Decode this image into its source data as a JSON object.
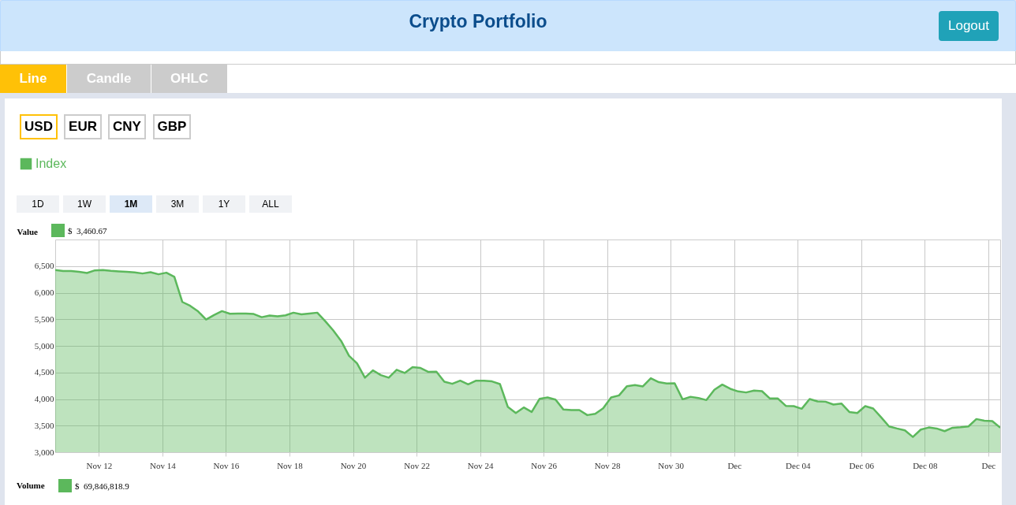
{
  "chart_data": {
    "type": "area",
    "title": "Crypto Portfolio",
    "ylabel": "Value",
    "legend": "top left",
    "grid": true,
    "xlim": [
      "--11-10T15:00",
      "--12-10T09:00"
    ],
    "xticks": [
      {
        "value": "--11-12",
        "label": "Nov 12"
      },
      {
        "value": "--11-14",
        "label": "Nov 14"
      },
      {
        "value": "--11-16",
        "label": "Nov 16"
      },
      {
        "value": "--11-18",
        "label": "Nov 18"
      },
      {
        "value": "--11-20",
        "label": "Nov 20"
      },
      {
        "value": "--11-22",
        "label": "Nov 22"
      },
      {
        "value": "--11-24",
        "label": "Nov 24"
      },
      {
        "value": "--11-26",
        "label": "Nov 26"
      },
      {
        "value": "--11-28",
        "label": "Nov 28"
      },
      {
        "value": "--11-30",
        "label": "Nov 30"
      },
      {
        "value": "--12-02",
        "label": "Dec"
      },
      {
        "value": "--12-04",
        "label": "Dec 04"
      },
      {
        "value": "--12-06",
        "label": "Dec 06"
      },
      {
        "value": "--12-08",
        "label": "Dec 08"
      },
      {
        "value": "--12-10",
        "label": "Dec"
      }
    ],
    "ylim": [
      3000,
      7000
    ],
    "yticks": [
      {
        "value": 3000,
        "label": "3,000"
      },
      {
        "value": 3500,
        "label": "3,500"
      },
      {
        "value": 4000,
        "label": "4,000"
      },
      {
        "value": 4500,
        "label": "4,500"
      },
      {
        "value": 5000,
        "label": "5,000"
      },
      {
        "value": 5500,
        "label": "5,500"
      },
      {
        "value": 6000,
        "label": "6,000"
      },
      {
        "value": 6500,
        "label": "6,500"
      }
    ],
    "x": [
      "--11-10T15:00",
      "--11-10T21:00",
      "--11-11T03:00",
      "--11-11T09:00",
      "--11-11T15:00",
      "--11-11T21:00",
      "--11-12T03:00",
      "--11-12T09:00",
      "--11-12T15:00",
      "--11-12T21:00",
      "--11-13T03:00",
      "--11-13T09:00",
      "--11-13T15:00",
      "--11-13T21:00",
      "--11-14T03:00",
      "--11-14T09:00",
      "--11-14T15:00",
      "--11-14T21:00",
      "--11-15T03:00",
      "--11-15T09:00",
      "--11-15T15:00",
      "--11-15T21:00",
      "--11-16T03:00",
      "--11-16T09:00",
      "--11-16T15:00",
      "--11-16T21:00",
      "--11-17T03:00",
      "--11-17T09:00",
      "--11-17T15:00",
      "--11-17T21:00",
      "--11-18T03:00",
      "--11-18T09:00",
      "--11-18T15:00",
      "--11-18T21:00",
      "--11-19T03:00",
      "--11-19T09:00",
      "--11-19T15:00",
      "--11-19T21:00",
      "--11-20T03:00",
      "--11-20T09:00",
      "--11-20T15:00",
      "--11-20T21:00",
      "--11-21T03:00",
      "--11-21T09:00",
      "--11-21T15:00",
      "--11-21T21:00",
      "--11-22T03:00",
      "--11-22T09:00",
      "--11-22T15:00",
      "--11-22T21:00",
      "--11-23T03:00",
      "--11-23T09:00",
      "--11-23T15:00",
      "--11-23T21:00",
      "--11-24T03:00",
      "--11-24T09:00",
      "--11-24T15:00",
      "--11-24T21:00",
      "--11-25T03:00",
      "--11-25T09:00",
      "--11-25T15:00",
      "--11-25T21:00",
      "--11-26T03:00",
      "--11-26T09:00",
      "--11-26T15:00",
      "--11-26T21:00",
      "--11-27T03:00",
      "--11-27T09:00",
      "--11-27T15:00",
      "--11-27T21:00",
      "--11-28T03:00",
      "--11-28T09:00",
      "--11-28T15:00",
      "--11-28T21:00",
      "--11-29T03:00",
      "--11-29T09:00",
      "--11-29T15:00",
      "--11-29T21:00",
      "--11-30T03:00",
      "--11-30T09:00",
      "--11-30T15:00",
      "--11-30T21:00",
      "--12-01T03:00",
      "--12-01T09:00",
      "--12-01T15:00",
      "--12-01T21:00",
      "--12-02T03:00",
      "--12-02T09:00",
      "--12-02T15:00",
      "--12-02T21:00",
      "--12-03T03:00",
      "--12-03T09:00",
      "--12-03T15:00",
      "--12-03T21:00",
      "--12-04T03:00",
      "--12-04T09:00",
      "--12-04T15:00",
      "--12-04T21:00",
      "--12-05T03:00",
      "--12-05T09:00",
      "--12-05T15:00",
      "--12-05T21:00",
      "--12-06T03:00",
      "--12-06T09:00",
      "--12-06T15:00",
      "--12-06T21:00",
      "--12-07T03:00",
      "--12-07T09:00",
      "--12-07T15:00",
      "--12-07T21:00",
      "--12-08T03:00",
      "--12-08T09:00",
      "--12-08T15:00",
      "--12-08T21:00",
      "--12-09T03:00",
      "--12-09T09:00",
      "--12-09T15:00",
      "--12-09T21:00",
      "--12-10T03:00",
      "--12-10T09:00"
    ],
    "series": [
      {
        "name": "Index",
        "color": "#5cb85c",
        "values": [
          6425,
          6406,
          6406,
          6391,
          6371,
          6420,
          6425,
          6410,
          6400,
          6391,
          6381,
          6361,
          6386,
          6346,
          6376,
          6297,
          5826,
          5752,
          5648,
          5495,
          5579,
          5653,
          5604,
          5609,
          5609,
          5599,
          5539,
          5569,
          5554,
          5574,
          5624,
          5594,
          5609,
          5624,
          5465,
          5292,
          5094,
          4812,
          4673,
          4401,
          4540,
          4450,
          4401,
          4550,
          4490,
          4599,
          4584,
          4510,
          4515,
          4327,
          4287,
          4346,
          4277,
          4346,
          4346,
          4332,
          4282,
          3851,
          3738,
          3842,
          3757,
          4005,
          4030,
          3990,
          3802,
          3792,
          3792,
          3698,
          3723,
          3827,
          4030,
          4069,
          4242,
          4262,
          4238,
          4391,
          4317,
          4292,
          4297,
          3995,
          4040,
          4020,
          3980,
          4173,
          4272,
          4193,
          4143,
          4124,
          4158,
          4148,
          4010,
          4010,
          3871,
          3866,
          3817,
          4000,
          3955,
          3950,
          3896,
          3916,
          3757,
          3738,
          3866,
          3822,
          3658,
          3485,
          3446,
          3411,
          3287,
          3426,
          3465,
          3446,
          3396,
          3460,
          3470,
          3485,
          3624,
          3594,
          3584,
          3461
        ]
      }
    ],
    "annotations": [
      "Logout",
      "Line",
      "Candle",
      "OHLC",
      "USD",
      "EUR",
      "CNY",
      "GBP",
      "1D",
      "1W",
      "1M",
      "3M",
      "1Y",
      "ALL",
      "$  3,460.67",
      "Volume",
      "$  69,846,818.9"
    ]
  }
}
